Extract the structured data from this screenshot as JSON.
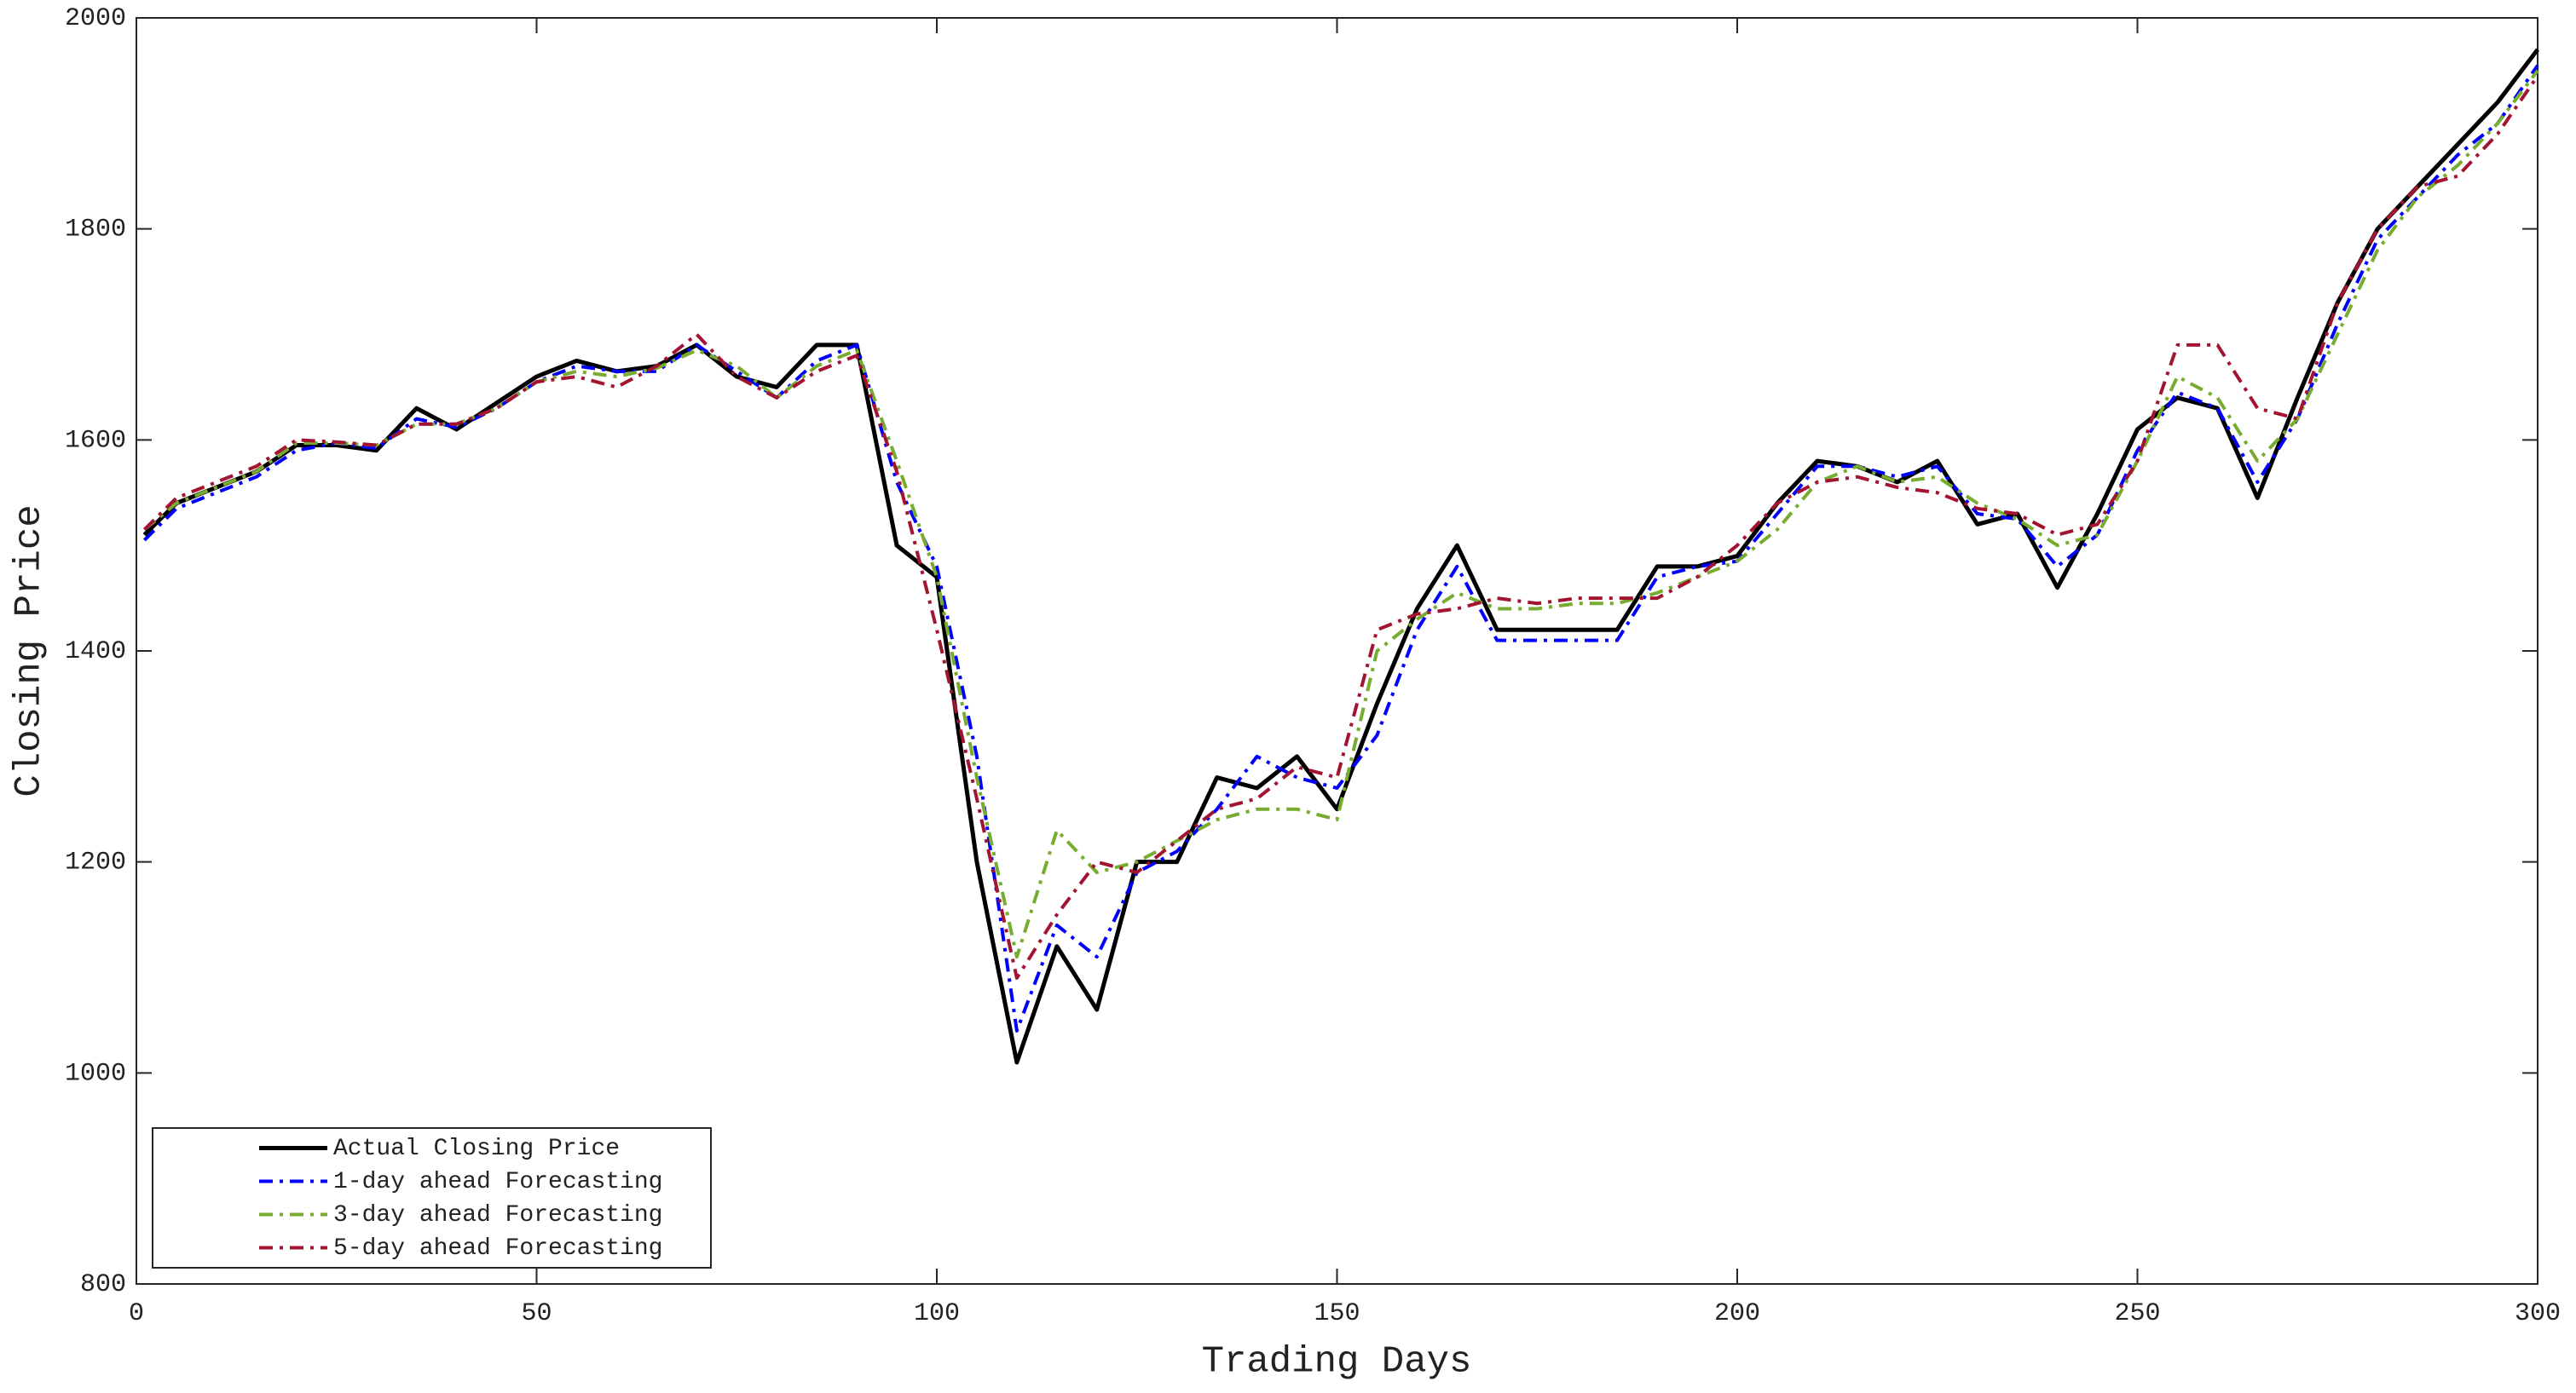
{
  "chart_data": {
    "type": "line",
    "xlabel": "Trading Days",
    "ylabel": "Closing Price",
    "xlim": [
      0,
      300
    ],
    "xticks": [
      0,
      50,
      100,
      150,
      200,
      250,
      300
    ],
    "ylim": [
      800,
      2000
    ],
    "yticks": [
      800,
      1000,
      1200,
      1400,
      1600,
      1800,
      2000
    ],
    "legend": "lower left",
    "x": [
      1,
      5,
      10,
      15,
      20,
      25,
      30,
      35,
      40,
      45,
      50,
      55,
      60,
      65,
      70,
      75,
      80,
      85,
      90,
      95,
      100,
      105,
      110,
      115,
      120,
      125,
      130,
      135,
      140,
      145,
      150,
      155,
      160,
      165,
      170,
      175,
      180,
      185,
      190,
      195,
      200,
      205,
      210,
      215,
      220,
      225,
      230,
      235,
      240,
      245,
      250,
      255,
      260,
      265,
      270,
      275,
      280,
      285,
      290,
      295,
      300
    ],
    "series": [
      {
        "name": "Actual Closing Price",
        "color": "#000000",
        "dash": "solid",
        "values": [
          1510,
          1540,
          1555,
          1570,
          1595,
          1595,
          1590,
          1630,
          1610,
          1635,
          1660,
          1675,
          1665,
          1670,
          1690,
          1660,
          1650,
          1690,
          1690,
          1500,
          1470,
          1200,
          1010,
          1120,
          1060,
          1200,
          1200,
          1280,
          1270,
          1300,
          1250,
          1350,
          1440,
          1500,
          1420,
          1420,
          1420,
          1420,
          1480,
          1480,
          1490,
          1540,
          1580,
          1575,
          1560,
          1580,
          1520,
          1530,
          1460,
          1530,
          1610,
          1640,
          1630,
          1545,
          1640,
          1730,
          1800,
          1840,
          1880,
          1920,
          1970
        ]
      },
      {
        "name": "1-day ahead Forecasting",
        "color": "#0000ff",
        "dash": "dashdot",
        "values": [
          1505,
          1535,
          1550,
          1565,
          1590,
          1597,
          1592,
          1620,
          1612,
          1630,
          1655,
          1670,
          1665,
          1665,
          1690,
          1665,
          1640,
          1675,
          1690,
          1560,
          1480,
          1300,
          1040,
          1140,
          1110,
          1190,
          1210,
          1250,
          1300,
          1280,
          1270,
          1320,
          1420,
          1480,
          1410,
          1410,
          1410,
          1410,
          1470,
          1480,
          1485,
          1530,
          1575,
          1575,
          1565,
          1575,
          1530,
          1525,
          1480,
          1510,
          1590,
          1645,
          1630,
          1560,
          1620,
          1710,
          1790,
          1830,
          1870,
          1900,
          1955
        ]
      },
      {
        "name": "3-day ahead Forecasting",
        "color": "#77ac30",
        "dash": "dashdot",
        "values": [
          1515,
          1540,
          1555,
          1570,
          1597,
          1597,
          1595,
          1615,
          1615,
          1630,
          1655,
          1665,
          1660,
          1668,
          1685,
          1670,
          1640,
          1670,
          1685,
          1580,
          1470,
          1280,
          1110,
          1230,
          1190,
          1200,
          1220,
          1240,
          1250,
          1250,
          1240,
          1400,
          1430,
          1455,
          1440,
          1440,
          1445,
          1445,
          1455,
          1470,
          1485,
          1515,
          1560,
          1575,
          1560,
          1565,
          1540,
          1525,
          1500,
          1510,
          1580,
          1660,
          1640,
          1580,
          1620,
          1700,
          1780,
          1830,
          1860,
          1900,
          1950
        ]
      },
      {
        "name": "5-day ahead Forecasting",
        "color": "#a2142f",
        "dash": "dashdot",
        "values": [
          1515,
          1545,
          1560,
          1575,
          1600,
          1598,
          1595,
          1615,
          1615,
          1630,
          1655,
          1660,
          1650,
          1670,
          1700,
          1660,
          1640,
          1665,
          1680,
          1570,
          1420,
          1260,
          1090,
          1150,
          1200,
          1190,
          1220,
          1250,
          1260,
          1290,
          1280,
          1420,
          1435,
          1440,
          1450,
          1445,
          1450,
          1450,
          1450,
          1470,
          1500,
          1540,
          1560,
          1565,
          1555,
          1550,
          1535,
          1530,
          1510,
          1520,
          1580,
          1690,
          1690,
          1630,
          1620,
          1730,
          1800,
          1840,
          1850,
          1890,
          1945
        ]
      }
    ]
  }
}
